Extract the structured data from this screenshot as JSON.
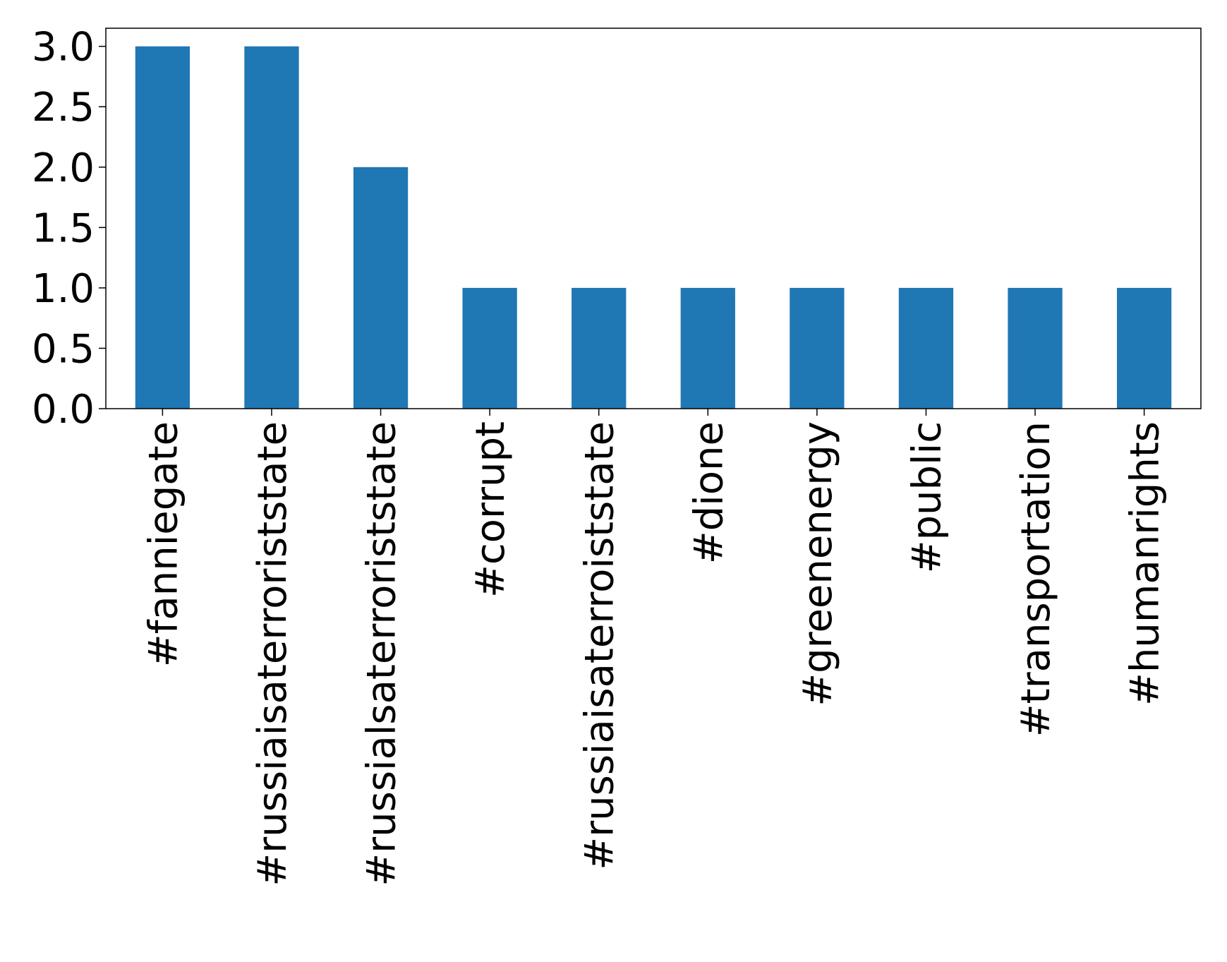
{
  "chart_data": {
    "type": "bar",
    "title": "",
    "xlabel": "",
    "ylabel": "",
    "categories": [
      "#fanniegate",
      "#russiaisaterroriststate",
      "#russialsaterroriststate",
      "#corrupt",
      "#russiaisaterroiststate",
      "#dione",
      "#greenenergy",
      "#public",
      "#transportation",
      "#humanrights"
    ],
    "values": [
      3,
      3,
      2,
      1,
      1,
      1,
      1,
      1,
      1,
      1
    ],
    "ylim": [
      0,
      3.15
    ],
    "yticks": [
      "0.0",
      "0.5",
      "1.0",
      "1.5",
      "2.0",
      "2.5",
      "3.0"
    ],
    "bar_color": "#1f77b4",
    "grid": false,
    "legend": "none"
  }
}
